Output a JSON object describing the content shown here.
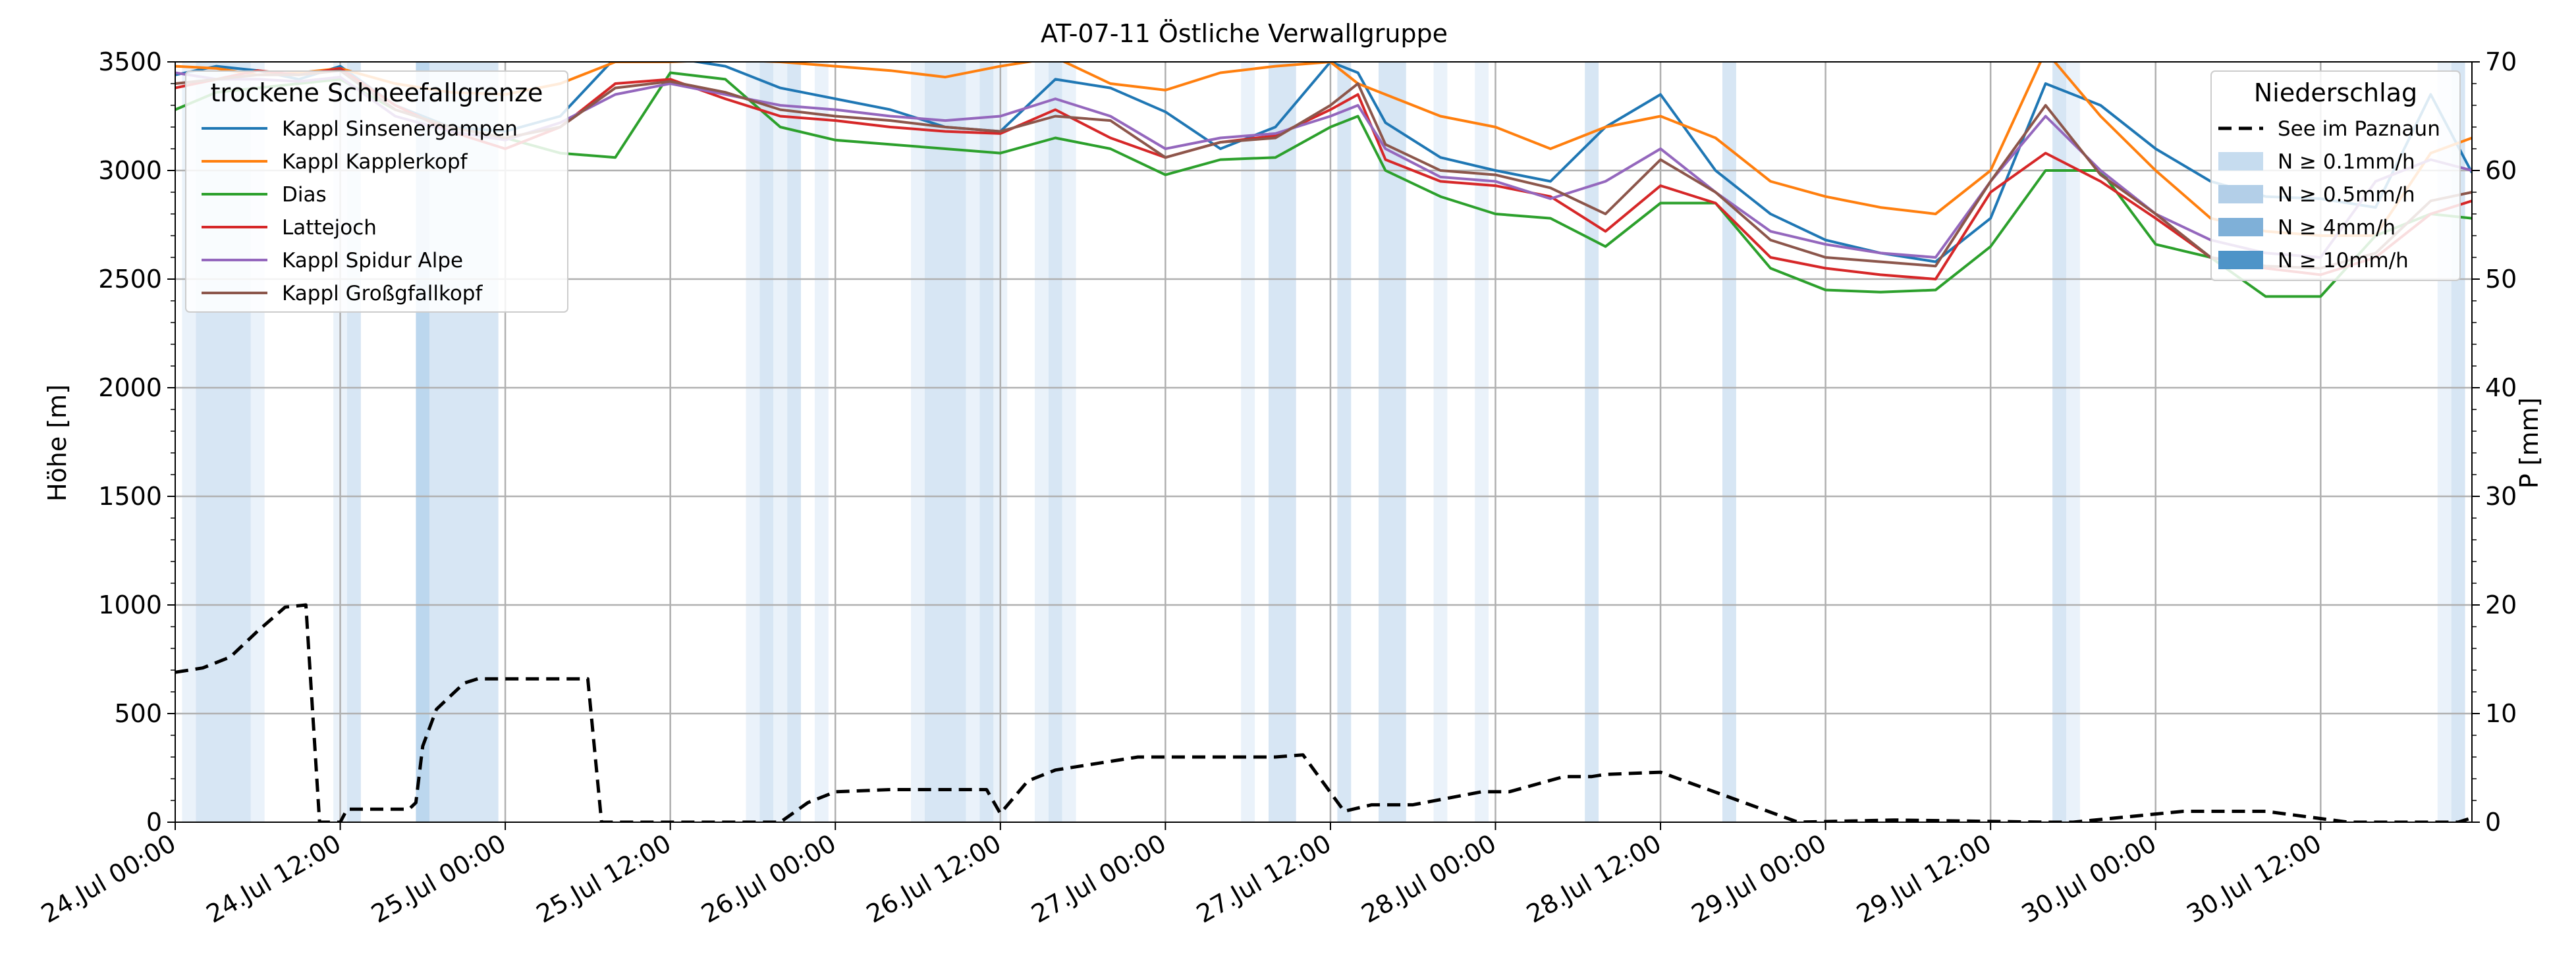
{
  "chart_data": {
    "type": "line",
    "title": "AT-07-11 Östliche Verwallgruppe",
    "ylabel": "Höhe [m]",
    "ylabel_right": "P [mm]",
    "ylim": [
      0,
      3500
    ],
    "ylim_right": [
      0,
      70
    ],
    "y_ticks": [
      0,
      500,
      1000,
      1500,
      2000,
      2500,
      3000,
      3500
    ],
    "y_ticks_right": [
      0,
      10,
      20,
      30,
      40,
      50,
      60,
      70
    ],
    "x_unit": "hours since 24.Jul 00:00",
    "xlim": [
      0,
      167
    ],
    "x_ticks": [
      {
        "x": 0,
        "label": "24.Jul 00:00"
      },
      {
        "x": 12,
        "label": "24.Jul 12:00"
      },
      {
        "x": 24,
        "label": "25.Jul 00:00"
      },
      {
        "x": 36,
        "label": "25.Jul 12:00"
      },
      {
        "x": 48,
        "label": "26.Jul 00:00"
      },
      {
        "x": 60,
        "label": "26.Jul 12:00"
      },
      {
        "x": 72,
        "label": "27.Jul 00:00"
      },
      {
        "x": 84,
        "label": "27.Jul 12:00"
      },
      {
        "x": 96,
        "label": "28.Jul 00:00"
      },
      {
        "x": 108,
        "label": "28.Jul 12:00"
      },
      {
        "x": 120,
        "label": "29.Jul 00:00"
      },
      {
        "x": 132,
        "label": "29.Jul 12:00"
      },
      {
        "x": 144,
        "label": "30.Jul 00:00"
      },
      {
        "x": 156,
        "label": "30.Jul 12:00"
      }
    ],
    "grid": true,
    "legend_left": {
      "title": "trockene Schneefallgrenze",
      "placement": "top-left"
    },
    "legend_right": {
      "title": "Niederschlag",
      "placement": "top-right",
      "entries": [
        {
          "label": "See im Paznaun",
          "color": "#000000",
          "style": "dashed"
        },
        {
          "label": "N ≥ 0.1mm/h",
          "color": "#c6dcef"
        },
        {
          "label": "N ≥ 0.5mm/h",
          "color": "#b3cfe8"
        },
        {
          "label": "N ≥ 4mm/h",
          "color": "#7fb0d8"
        },
        {
          "label": "N ≥ 10mm/h",
          "color": "#4e94c8"
        }
      ]
    },
    "series": [
      {
        "name": "Kappl Sinsenergampen",
        "color": "#1f77b4",
        "x": [
          0,
          3,
          6,
          9,
          12,
          16,
          20,
          24,
          28,
          32,
          36,
          40,
          44,
          48,
          52,
          56,
          60,
          64,
          68,
          72,
          76,
          80,
          84,
          86,
          88,
          92,
          96,
          100,
          104,
          108,
          112,
          116,
          120,
          124,
          128,
          132,
          136,
          140,
          144,
          148,
          152,
          156,
          160,
          164,
          167
        ],
        "y": [
          3440,
          3480,
          3460,
          3420,
          3480,
          3300,
          3200,
          3180,
          3250,
          3520,
          3520,
          3480,
          3380,
          3330,
          3280,
          3200,
          3180,
          3420,
          3380,
          3270,
          3100,
          3200,
          3500,
          3450,
          3220,
          3060,
          3000,
          2950,
          3200,
          3350,
          3000,
          2800,
          2680,
          2620,
          2580,
          2780,
          3400,
          3300,
          3100,
          2950,
          2880,
          2870,
          2830,
          3350,
          2990
        ]
      },
      {
        "name": "Kappl Kapplerkopf",
        "color": "#ff7f0e",
        "x": [
          0,
          3,
          6,
          9,
          12,
          16,
          20,
          24,
          28,
          32,
          36,
          40,
          44,
          48,
          52,
          56,
          60,
          64,
          68,
          72,
          76,
          80,
          84,
          86,
          88,
          92,
          96,
          100,
          104,
          108,
          112,
          116,
          120,
          124,
          128,
          132,
          136,
          140,
          144,
          148,
          152,
          156,
          160,
          164,
          167
        ],
        "y": [
          3480,
          3470,
          3440,
          3450,
          3470,
          3400,
          3360,
          3350,
          3400,
          3500,
          3500,
          3510,
          3500,
          3480,
          3460,
          3430,
          3480,
          3520,
          3400,
          3370,
          3450,
          3480,
          3500,
          3400,
          3350,
          3250,
          3200,
          3100,
          3200,
          3250,
          3150,
          2950,
          2880,
          2830,
          2800,
          3000,
          3550,
          3250,
          3000,
          2780,
          2720,
          2700,
          2700,
          3080,
          3150
        ]
      },
      {
        "name": "Dias",
        "color": "#2ca02c",
        "x": [
          0,
          3,
          6,
          9,
          12,
          16,
          20,
          24,
          28,
          32,
          36,
          40,
          44,
          48,
          52,
          56,
          60,
          64,
          68,
          72,
          76,
          80,
          84,
          86,
          88,
          92,
          96,
          100,
          104,
          108,
          112,
          116,
          120,
          124,
          128,
          132,
          136,
          140,
          144,
          148,
          152,
          156,
          160,
          164,
          167
        ],
        "y": [
          3280,
          3360,
          3380,
          3400,
          3420,
          3280,
          3200,
          3150,
          3080,
          3060,
          3450,
          3420,
          3200,
          3140,
          3120,
          3100,
          3080,
          3150,
          3100,
          2980,
          3050,
          3060,
          3200,
          3250,
          3000,
          2880,
          2800,
          2780,
          2650,
          2850,
          2850,
          2550,
          2450,
          2440,
          2450,
          2650,
          3000,
          3000,
          2660,
          2600,
          2420,
          2420,
          2700,
          2800,
          2780
        ]
      },
      {
        "name": "Lattejoch",
        "color": "#d62728",
        "x": [
          0,
          3,
          6,
          9,
          12,
          16,
          20,
          24,
          28,
          32,
          36,
          40,
          44,
          48,
          52,
          56,
          60,
          64,
          68,
          72,
          76,
          80,
          84,
          86,
          88,
          92,
          96,
          100,
          104,
          108,
          112,
          116,
          120,
          124,
          128,
          132,
          136,
          140,
          144,
          148,
          152,
          156,
          160,
          164,
          167
        ],
        "y": [
          3380,
          3420,
          3460,
          3440,
          3470,
          3300,
          3180,
          3100,
          3200,
          3400,
          3420,
          3330,
          3250,
          3230,
          3200,
          3180,
          3170,
          3280,
          3150,
          3060,
          3130,
          3160,
          3280,
          3350,
          3050,
          2950,
          2930,
          2880,
          2720,
          2930,
          2850,
          2600,
          2550,
          2520,
          2500,
          2900,
          3080,
          2950,
          2780,
          2600,
          2550,
          2520,
          2600,
          2800,
          2860
        ]
      },
      {
        "name": "Kappl Spidur Alpe",
        "color": "#9467bd",
        "x": [
          0,
          3,
          6,
          9,
          12,
          16,
          20,
          24,
          28,
          32,
          36,
          40,
          44,
          48,
          52,
          56,
          60,
          64,
          68,
          72,
          76,
          80,
          84,
          86,
          88,
          92,
          96,
          100,
          104,
          108,
          112,
          116,
          120,
          124,
          128,
          132,
          136,
          140,
          144,
          148,
          152,
          156,
          160,
          164,
          167
        ],
        "y": [
          3450,
          3420,
          3420,
          3410,
          3430,
          3250,
          3180,
          3140,
          3220,
          3350,
          3400,
          3350,
          3300,
          3280,
          3250,
          3230,
          3250,
          3330,
          3250,
          3100,
          3150,
          3170,
          3250,
          3300,
          3100,
          2970,
          2950,
          2870,
          2950,
          3100,
          2900,
          2720,
          2660,
          2620,
          2600,
          2950,
          3250,
          3000,
          2800,
          2680,
          2620,
          2600,
          2950,
          3050,
          3000
        ]
      },
      {
        "name": "Kappl Großgfallkopf",
        "color": "#8c564b",
        "x": [
          0,
          3,
          6,
          9,
          12,
          16,
          20,
          24,
          28,
          32,
          36,
          40,
          44,
          48,
          52,
          56,
          60,
          64,
          68,
          72,
          76,
          80,
          84,
          86,
          88,
          92,
          96,
          100,
          104,
          108,
          112,
          116,
          120,
          124,
          128,
          132,
          136,
          140,
          144,
          148,
          152,
          156,
          160,
          164,
          167
        ],
        "y": [
          3400,
          3420,
          3440,
          3440,
          3460,
          3280,
          3200,
          3150,
          3200,
          3380,
          3410,
          3360,
          3280,
          3250,
          3230,
          3200,
          3180,
          3250,
          3230,
          3060,
          3130,
          3150,
          3300,
          3400,
          3120,
          3000,
          2980,
          2920,
          2800,
          3050,
          2900,
          2680,
          2600,
          2580,
          2560,
          2950,
          3300,
          2980,
          2800,
          2600,
          2560,
          2550,
          2620,
          2860,
          2900
        ]
      },
      {
        "name": "See im Paznaun",
        "color": "#000000",
        "dashed": true,
        "x": [
          0,
          2,
          4,
          6,
          8,
          9.5,
          10.5,
          12,
          12.5,
          17,
          17.5,
          18,
          19,
          20,
          21,
          22,
          24,
          26,
          28,
          30,
          31,
          32,
          33,
          38,
          40,
          44,
          46,
          48,
          52,
          54,
          55,
          56,
          57,
          59,
          60,
          62,
          64,
          66,
          70,
          72,
          74,
          75,
          76,
          80,
          82,
          85,
          87,
          90,
          95,
          97,
          101,
          103,
          104,
          108,
          118,
          125,
          136,
          137,
          138,
          146,
          150,
          151,
          152,
          158,
          166,
          167
        ],
        "y": [
          690,
          710,
          760,
          880,
          990,
          1000,
          0,
          0,
          60,
          60,
          90,
          350,
          520,
          580,
          640,
          660,
          660,
          660,
          660,
          660,
          0,
          0,
          0,
          0,
          0,
          0,
          90,
          140,
          150,
          150,
          150,
          150,
          150,
          150,
          40,
          190,
          240,
          260,
          300,
          300,
          300,
          300,
          300,
          300,
          310,
          50,
          80,
          80,
          140,
          140,
          210,
          210,
          220,
          230,
          0,
          10,
          0,
          0,
          0,
          50,
          50,
          50,
          50,
          0,
          0,
          20
        ]
      }
    ],
    "precipitation_bands": [
      {
        "start": 0.5,
        "end": 1.5,
        "level": 1
      },
      {
        "start": 1.5,
        "end": 5.5,
        "level": 2
      },
      {
        "start": 5.5,
        "end": 6.5,
        "level": 1
      },
      {
        "start": 11.5,
        "end": 12.5,
        "level": 1
      },
      {
        "start": 12.5,
        "end": 13.5,
        "level": 2
      },
      {
        "start": 17.5,
        "end": 18.5,
        "level": 3
      },
      {
        "start": 18.5,
        "end": 23.5,
        "level": 2
      },
      {
        "start": 41.5,
        "end": 42.5,
        "level": 1
      },
      {
        "start": 42.5,
        "end": 43.5,
        "level": 2
      },
      {
        "start": 43.5,
        "end": 44.5,
        "level": 1
      },
      {
        "start": 44.5,
        "end": 45.5,
        "level": 2
      },
      {
        "start": 46.5,
        "end": 47.5,
        "level": 1
      },
      {
        "start": 53.5,
        "end": 54.5,
        "level": 1
      },
      {
        "start": 54.5,
        "end": 57.5,
        "level": 2
      },
      {
        "start": 57.5,
        "end": 58.5,
        "level": 1
      },
      {
        "start": 58.5,
        "end": 59.5,
        "level": 2
      },
      {
        "start": 59.5,
        "end": 60.5,
        "level": 1
      },
      {
        "start": 62.5,
        "end": 63.5,
        "level": 1
      },
      {
        "start": 63.5,
        "end": 64.5,
        "level": 2
      },
      {
        "start": 64.5,
        "end": 65.5,
        "level": 1
      },
      {
        "start": 77.5,
        "end": 78.5,
        "level": 1
      },
      {
        "start": 79.5,
        "end": 81.5,
        "level": 2
      },
      {
        "start": 84.5,
        "end": 85.5,
        "level": 2
      },
      {
        "start": 87.5,
        "end": 89.5,
        "level": 2
      },
      {
        "start": 91.5,
        "end": 92.5,
        "level": 1
      },
      {
        "start": 94.5,
        "end": 95.5,
        "level": 1
      },
      {
        "start": 102.5,
        "end": 103.5,
        "level": 2
      },
      {
        "start": 112.5,
        "end": 113.5,
        "level": 2
      },
      {
        "start": 136.5,
        "end": 137.5,
        "level": 2
      },
      {
        "start": 137.5,
        "end": 138.5,
        "level": 1
      },
      {
        "start": 164.5,
        "end": 165.5,
        "level": 1
      },
      {
        "start": 165.5,
        "end": 166.5,
        "level": 2
      }
    ]
  }
}
